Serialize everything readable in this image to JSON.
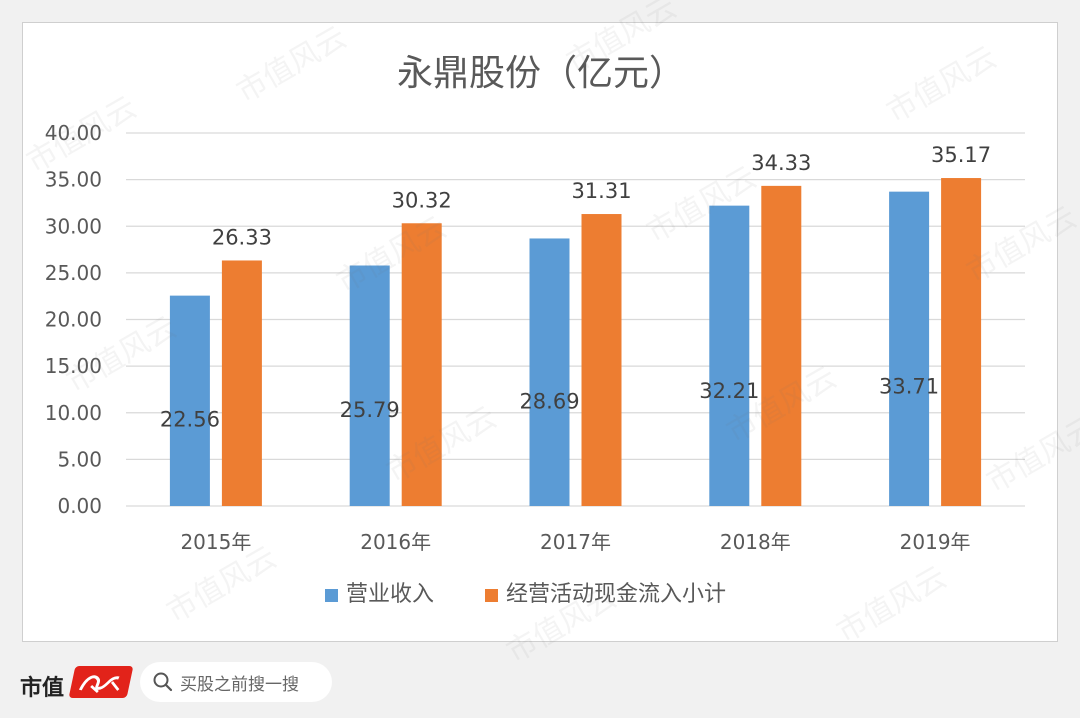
{
  "chart_data": {
    "type": "bar",
    "title": "永鼎股份（亿元）",
    "categories": [
      "2015年",
      "2016年",
      "2017年",
      "2018年",
      "2019年"
    ],
    "series": [
      {
        "name": "营业收入",
        "values": [
          22.56,
          25.79,
          28.69,
          32.21,
          33.71
        ],
        "color": "#5b9bd5"
      },
      {
        "name": "经营活动现金流入小计",
        "values": [
          26.33,
          30.32,
          31.31,
          34.33,
          35.17
        ],
        "color": "#ed7d31"
      }
    ],
    "value_labels": [
      [
        "22.56",
        "25.79",
        "28.69",
        "32.21",
        "33.71"
      ],
      [
        "26.33",
        "30.32",
        "31.31",
        "34.33",
        "35.17"
      ]
    ],
    "ylim": [
      0,
      40
    ],
    "yticks": [
      "0.00",
      "5.00",
      "10.00",
      "15.00",
      "20.00",
      "25.00",
      "30.00",
      "35.00",
      "40.00"
    ],
    "xlabel": "",
    "ylabel": "",
    "grid": true,
    "legend_position": "bottom"
  },
  "footer": {
    "brand": "市值",
    "search_placeholder": "买股之前搜一搜",
    "search_icon": "search-icon"
  },
  "watermark": "市值风云"
}
